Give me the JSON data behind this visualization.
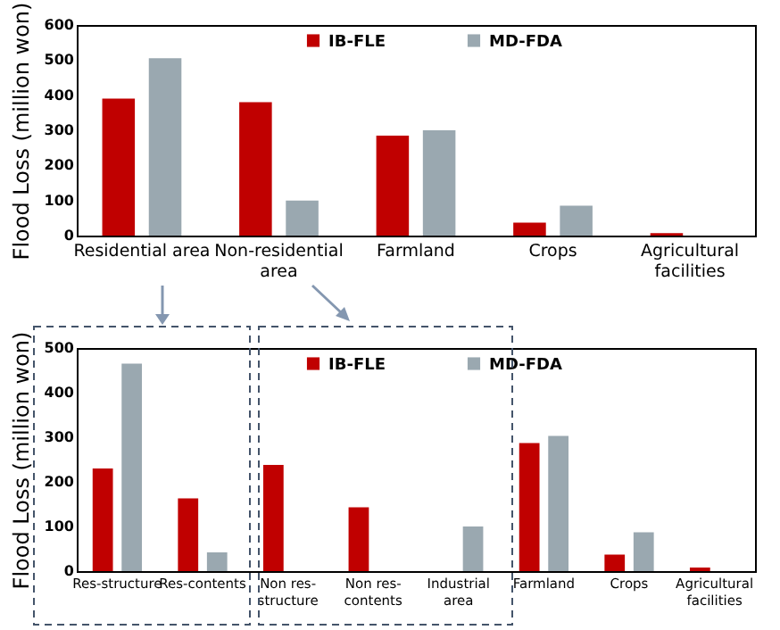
{
  "chart_data": [
    {
      "type": "bar",
      "ylabel": "Flood Loss (million won)",
      "categories": [
        "Residential area",
        "Non-residential area",
        "Farmland",
        "Crops",
        "Agricultural facilities"
      ],
      "series": [
        {
          "name": "IB-FLE",
          "color": "#c00000",
          "values": [
            390,
            380,
            285,
            37,
            7
          ]
        },
        {
          "name": "MD-FDA",
          "color": "#9aa8b0",
          "values": [
            505,
            100,
            300,
            85,
            0
          ]
        }
      ],
      "ylim": [
        0,
        600
      ],
      "yticks": [
        0,
        100,
        200,
        300,
        400,
        500,
        600
      ],
      "legend": "top",
      "grid": false
    },
    {
      "type": "bar",
      "ylabel": "Flood Loss (million won)",
      "categories": [
        "Res-structure",
        "Res-contents",
        "Non res-structure",
        "Non res-contents",
        "Industrial area",
        "Farmland",
        "Crops",
        "Agricultural facilities"
      ],
      "series": [
        {
          "name": "IB-FLE",
          "color": "#c00000",
          "values": [
            230,
            163,
            238,
            143,
            0,
            287,
            37,
            8
          ]
        },
        {
          "name": "MD-FDA",
          "color": "#9aa8b0",
          "values": [
            465,
            42,
            0,
            0,
            100,
            303,
            87,
            0
          ]
        }
      ],
      "ylim": [
        0,
        500
      ],
      "yticks": [
        0,
        100,
        200,
        300,
        400,
        500
      ],
      "legend": "top",
      "grid": false
    }
  ]
}
